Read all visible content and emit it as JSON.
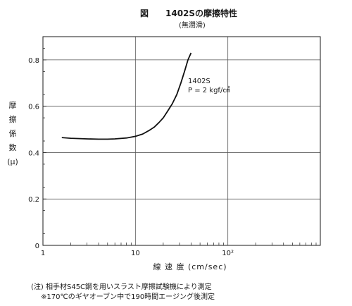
{
  "figure": {
    "label": "図",
    "title": "1402Sの摩擦特性",
    "subtitle": "(無潤滑)"
  },
  "notes": {
    "line1": "(注) 相手材S45C鋼を用いスラスト摩擦試験機により測定",
    "line2": "※170℃のギヤオーブン中で190時間エージング後測定"
  },
  "chart_data": {
    "type": "line",
    "title": "1402Sの摩擦特性",
    "subtitle": "(無潤滑)",
    "xlabel": "線 速 度 (cm/sec)",
    "ylabel": "摩擦係数(μ)",
    "x_scale": "log",
    "xlim": [
      1,
      1000
    ],
    "ylim": [
      0,
      0.9
    ],
    "x_ticks": [
      {
        "value": 1,
        "label": "1"
      },
      {
        "value": 10,
        "label": "10"
      },
      {
        "value": 100,
        "label": "10²"
      }
    ],
    "y_ticks": [
      {
        "value": 0,
        "label": "0"
      },
      {
        "value": 0.2,
        "label": "0.2"
      },
      {
        "value": 0.4,
        "label": "0.4"
      },
      {
        "value": 0.6,
        "label": "0.6"
      },
      {
        "value": 0.8,
        "label": "0.8"
      }
    ],
    "grid": true,
    "series": [
      {
        "name": "1402S",
        "annotation": "P = 2 kgf/㎠",
        "points": [
          [
            1.6,
            0.465
          ],
          [
            2.0,
            0.462
          ],
          [
            3.0,
            0.459
          ],
          [
            4.0,
            0.458
          ],
          [
            5.0,
            0.458
          ],
          [
            6.0,
            0.459
          ],
          [
            8.0,
            0.463
          ],
          [
            10.0,
            0.47
          ],
          [
            12.0,
            0.48
          ],
          [
            14.0,
            0.495
          ],
          [
            16.0,
            0.51
          ],
          [
            18.0,
            0.53
          ],
          [
            20.0,
            0.55
          ],
          [
            22.0,
            0.575
          ],
          [
            25.0,
            0.61
          ],
          [
            28.0,
            0.65
          ],
          [
            31.0,
            0.7
          ],
          [
            34.0,
            0.75
          ],
          [
            37.0,
            0.8
          ],
          [
            40.0,
            0.83
          ]
        ]
      }
    ]
  }
}
